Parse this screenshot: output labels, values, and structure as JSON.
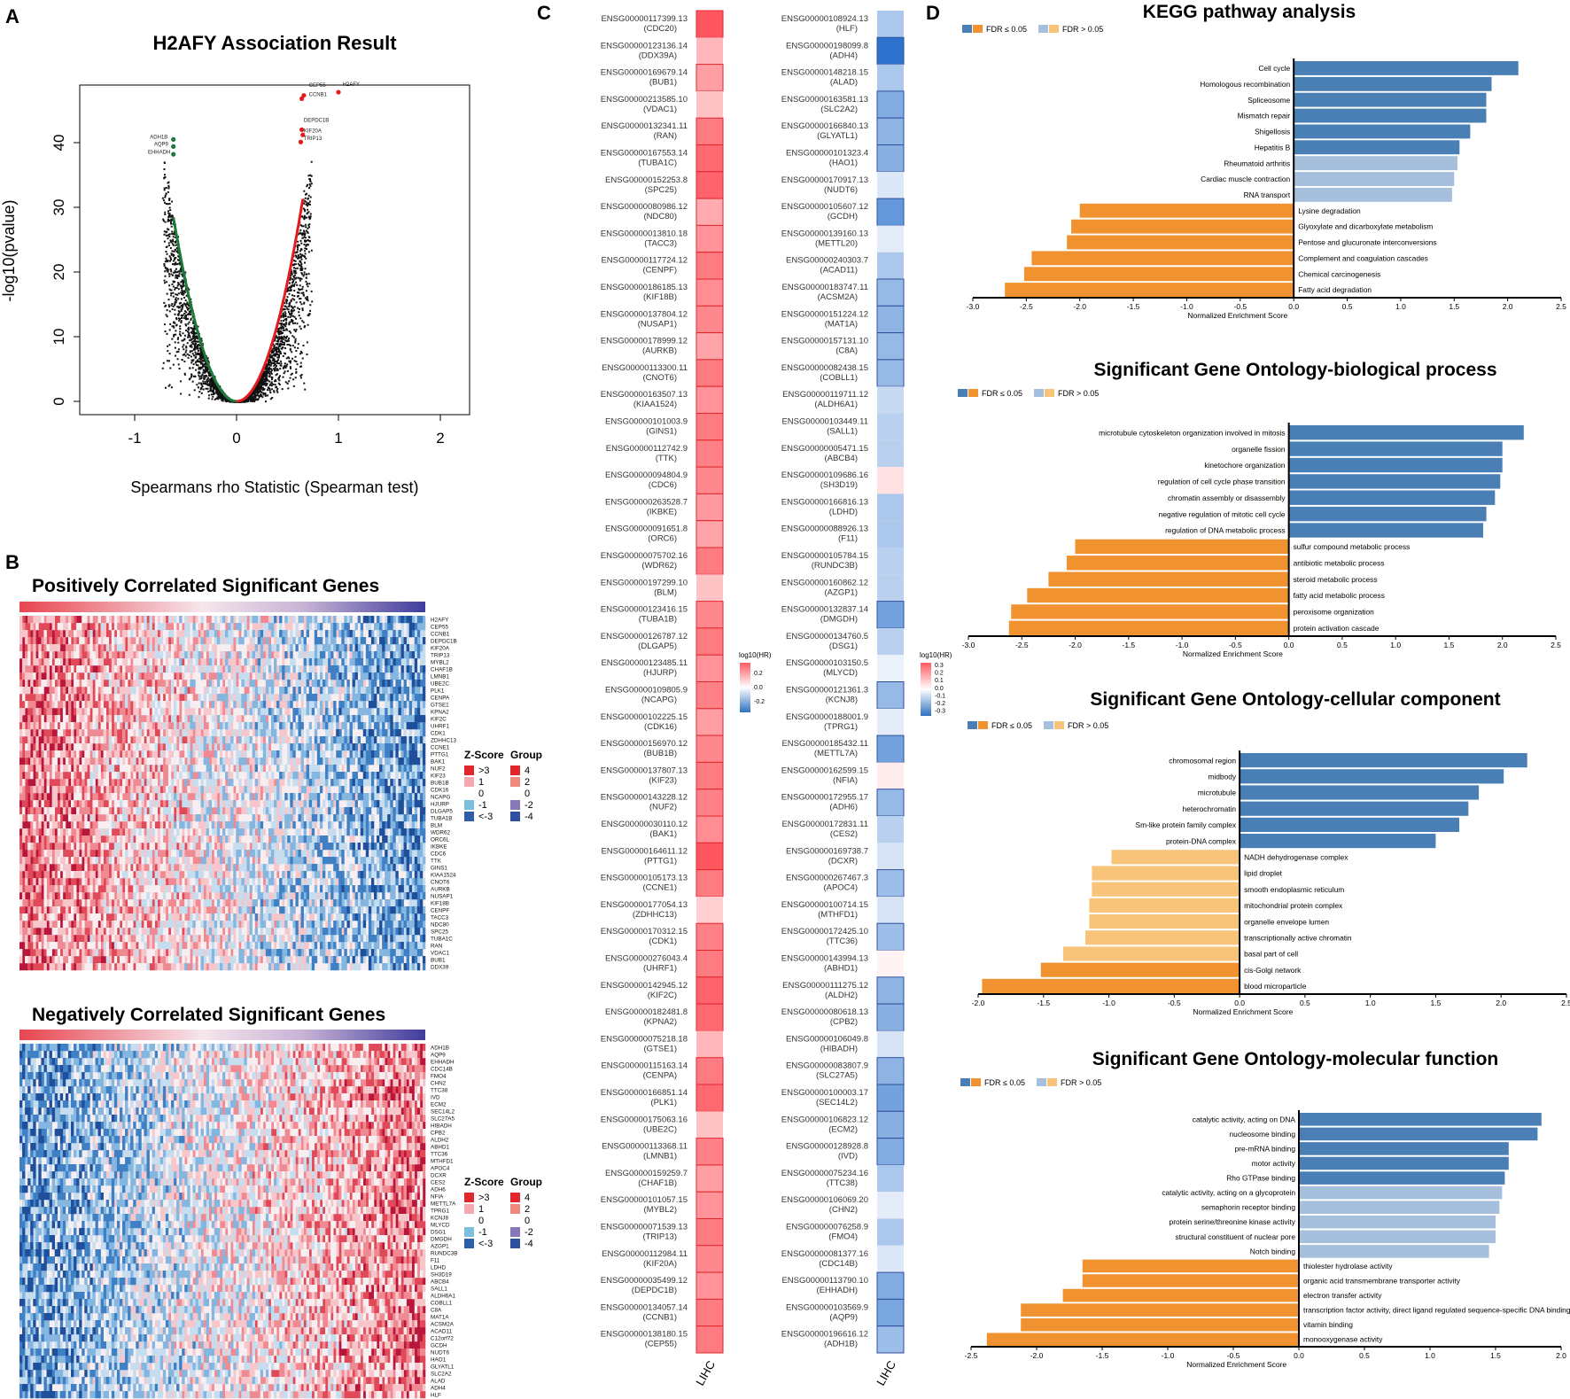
{
  "colors": {
    "blue_sig": "#4a7fb5",
    "blue_nonsig": "#a6bfdc",
    "orange_sig": "#f0922f",
    "orange_nonsig": "#f7c47a",
    "volcano_pos": "#e41a1c",
    "volcano_neg": "#1b7a3a",
    "heat_red": "#e8454f",
    "heat_blue": "#2f5ea8"
  },
  "panels": {
    "a": {
      "letter": "A"
    },
    "b": {
      "letter": "B"
    },
    "c": {
      "letter": "C"
    },
    "d": {
      "letter": "D"
    }
  },
  "volcano": {
    "title": "H2AFY Association Result",
    "xlabel": "Spearmans rho Statistic (Spearman test)",
    "ylabel": "-log10(pvalue)",
    "xticks": [
      "-1",
      "0",
      "1",
      "2"
    ],
    "yticks": [
      "0",
      "10",
      "20",
      "30",
      "40"
    ],
    "labels_pos": [
      "H2AFY",
      "CEP55",
      "CCNB1",
      "DEPDC1B",
      "KIF20A",
      "TRIP13"
    ],
    "labels_neg": [
      "ADH1B",
      "AQP9",
      "EHHADH"
    ]
  },
  "heatmaps": {
    "pos_title": "Positively Correlated Significant Genes",
    "neg_title": "Negatively Correlated Significant Genes",
    "pos_genes": [
      "H2AFY",
      "CEP55",
      "CCNB1",
      "DEPDC1B",
      "KIF20A",
      "TRIP13",
      "MYBL2",
      "CHAF1B",
      "LMNB1",
      "UBE2C",
      "PLK1",
      "CENPA",
      "GTSE1",
      "KPNA2",
      "KIF2C",
      "UHRF1",
      "CDK1",
      "ZDHHC13",
      "CCNE1",
      "PTTG1",
      "BAK1",
      "NUF2",
      "KIF23",
      "BUB1B",
      "CDK16",
      "NCAPG",
      "HJURP",
      "DLGAP5",
      "TUBA1B",
      "BLM",
      "WDR62",
      "ORC6L",
      "IKBKE",
      "CDC6",
      "TTK",
      "GINS1",
      "KIAA1524",
      "CNOT6",
      "AURKB",
      "NUSAP1",
      "KIF18B",
      "CENPF",
      "TACC3",
      "NDC80",
      "SPC25",
      "TUBA1C",
      "RAN",
      "VDAC1",
      "BUB1",
      "DDX39"
    ],
    "neg_genes": [
      "ADH1B",
      "AQP9",
      "EHHADH",
      "CDC14B",
      "FMO4",
      "CHN2",
      "TTC38",
      "IVD",
      "ECM2",
      "SEC14L2",
      "SLC27A5",
      "HIBADH",
      "CPB2",
      "ALDH2",
      "ABHD1",
      "TTC36",
      "MTHFD1",
      "APOC4",
      "DCXR",
      "CES2",
      "ADH6",
      "NFIA",
      "METTL7A",
      "TPRG1",
      "KCNJ8",
      "MLYCD",
      "DSG1",
      "DMGDH",
      "AZGP1",
      "RUNDC3B",
      "F11",
      "LDHD",
      "SH3D19",
      "ABCB4",
      "SALL1",
      "ALDH6A1",
      "COBLL1",
      "C8A",
      "MAT1A",
      "ACSM2A",
      "ACAD11",
      "C12orf72",
      "GCDH",
      "NUDT6",
      "HAO1",
      "GLYATL1",
      "SLC2A2",
      "ALAD",
      "ADH4",
      "HLF"
    ],
    "legend_z_title": "Z-Score",
    "legend_group_title": "Group",
    "legend_z": [
      ">3",
      "1",
      "0",
      "-1",
      "<-3"
    ],
    "legend_group": [
      "4",
      "2",
      "0",
      "-2",
      "-4"
    ]
  },
  "hr_panel": {
    "left_genes": [
      {
        "id": "ENSG00000117399.13",
        "sym": "(CDC20)",
        "v": 0.28
      },
      {
        "id": "ENSG00000123136.14",
        "sym": "(DDX39A)",
        "v": 0.12
      },
      {
        "id": "ENSG00000169679.14",
        "sym": "(BUB1)",
        "v": 0.16
      },
      {
        "id": "ENSG00000213585.10",
        "sym": "(VDAC1)",
        "v": 0.1
      },
      {
        "id": "ENSG00000132341.11",
        "sym": "(RAN)",
        "v": 0.22
      },
      {
        "id": "ENSG00000167553.14",
        "sym": "(TUBA1C)",
        "v": 0.25
      },
      {
        "id": "ENSG00000152253.8",
        "sym": "(SPC25)",
        "v": 0.26
      },
      {
        "id": "ENSG00000080986.12",
        "sym": "(NDC80)",
        "v": 0.14
      },
      {
        "id": "ENSG00000013810.18",
        "sym": "(TACC3)",
        "v": 0.18
      },
      {
        "id": "ENSG00000117724.12",
        "sym": "(CENPF)",
        "v": 0.22
      },
      {
        "id": "ENSG00000186185.13",
        "sym": "(KIF18B)",
        "v": 0.19
      },
      {
        "id": "ENSG00000137804.12",
        "sym": "(NUSAP1)",
        "v": 0.2
      },
      {
        "id": "ENSG00000178999.12",
        "sym": "(AURKB)",
        "v": 0.15
      },
      {
        "id": "ENSG00000113300.11",
        "sym": "(CNOT6)",
        "v": 0.22
      },
      {
        "id": "ENSG00000163507.13",
        "sym": "(KIAA1524)",
        "v": 0.18
      },
      {
        "id": "ENSG00000101003.9",
        "sym": "(GINS1)",
        "v": 0.22
      },
      {
        "id": "ENSG00000112742.9",
        "sym": "(TTK)",
        "v": 0.21
      },
      {
        "id": "ENSG00000094804.9",
        "sym": "(CDC6)",
        "v": 0.2
      },
      {
        "id": "ENSG00000263528.7",
        "sym": "(IKBKE)",
        "v": 0.17
      },
      {
        "id": "ENSG00000091651.8",
        "sym": "(ORC6)",
        "v": 0.15
      },
      {
        "id": "ENSG00000075702.16",
        "sym": "(WDR62)",
        "v": 0.22
      },
      {
        "id": "ENSG00000197299.10",
        "sym": "(BLM)",
        "v": 0.1
      },
      {
        "id": "ENSG00000123416.15",
        "sym": "(TUBA1B)",
        "v": 0.2
      },
      {
        "id": "ENSG00000126787.12",
        "sym": "(DLGAP5)",
        "v": 0.22
      },
      {
        "id": "ENSG00000123485.11",
        "sym": "(HJURP)",
        "v": 0.18
      },
      {
        "id": "ENSG00000109805.9",
        "sym": "(NCAPG)",
        "v": 0.21
      },
      {
        "id": "ENSG00000102225.15",
        "sym": "(CDK16)",
        "v": 0.16
      },
      {
        "id": "ENSG00000156970.12",
        "sym": "(BUB1B)",
        "v": 0.2
      },
      {
        "id": "ENSG00000137807.13",
        "sym": "(KIF23)",
        "v": 0.22
      },
      {
        "id": "ENSG00000143228.12",
        "sym": "(NUF2)",
        "v": 0.21
      },
      {
        "id": "ENSG00000030110.12",
        "sym": "(BAK1)",
        "v": 0.19
      },
      {
        "id": "ENSG00000164611.12",
        "sym": "(PTTG1)",
        "v": 0.28
      },
      {
        "id": "ENSG00000105173.13",
        "sym": "(CCNE1)",
        "v": 0.22
      },
      {
        "id": "ENSG00000177054.13",
        "sym": "(ZDHHC13)",
        "v": 0.08
      },
      {
        "id": "ENSG00000170312.15",
        "sym": "(CDK1)",
        "v": 0.21
      },
      {
        "id": "ENSG00000276043.4",
        "sym": "(UHRF1)",
        "v": 0.22
      },
      {
        "id": "ENSG00000142945.12",
        "sym": "(KIF2C)",
        "v": 0.26
      },
      {
        "id": "ENSG00000182481.8",
        "sym": "(KPNA2)",
        "v": 0.25
      },
      {
        "id": "ENSG00000075218.18",
        "sym": "(GTSE1)",
        "v": 0.12
      },
      {
        "id": "ENSG00000115163.14",
        "sym": "(CENPA)",
        "v": 0.22
      },
      {
        "id": "ENSG00000166851.14",
        "sym": "(PLK1)",
        "v": 0.25
      },
      {
        "id": "ENSG00000175063.16",
        "sym": "(UBE2C)",
        "v": 0.1
      },
      {
        "id": "ENSG00000113368.11",
        "sym": "(LMNB1)",
        "v": 0.21
      },
      {
        "id": "ENSG00000159259.7",
        "sym": "(CHAF1B)",
        "v": 0.16
      },
      {
        "id": "ENSG00000101057.15",
        "sym": "(MYBL2)",
        "v": 0.18
      },
      {
        "id": "ENSG00000071539.13",
        "sym": "(TRIP13)",
        "v": 0.22
      },
      {
        "id": "ENSG00000112984.11",
        "sym": "(KIF20A)",
        "v": 0.2
      },
      {
        "id": "ENSG00000035499.12",
        "sym": "(DEPDC1B)",
        "v": 0.18
      },
      {
        "id": "ENSG00000134057.14",
        "sym": "(CCNB1)",
        "v": 0.22
      },
      {
        "id": "ENSG00000138180.15",
        "sym": "(CEP55)",
        "v": 0.22
      }
    ],
    "right_genes": [
      {
        "id": "ENSG00000108924.13",
        "sym": "(HLF)",
        "v": -0.12
      },
      {
        "id": "ENSG00000198099.8",
        "sym": "(ADH4)",
        "v": -0.3
      },
      {
        "id": "ENSG00000148218.15",
        "sym": "(ALAD)",
        "v": -0.12
      },
      {
        "id": "ENSG00000163581.13",
        "sym": "(SLC2A2)",
        "v": -0.18
      },
      {
        "id": "ENSG00000166840.13",
        "sym": "(GLYATL1)",
        "v": -0.16
      },
      {
        "id": "ENSG00000101323.4",
        "sym": "(HAO1)",
        "v": -0.17
      },
      {
        "id": "ENSG00000170917.13",
        "sym": "(NUDT6)",
        "v": -0.05
      },
      {
        "id": "ENSG00000105607.12",
        "sym": "(GCDH)",
        "v": -0.22
      },
      {
        "id": "ENSG00000139160.13",
        "sym": "(METTL20)",
        "v": -0.04
      },
      {
        "id": "ENSG00000240303.7",
        "sym": "(ACAD11)",
        "v": -0.12
      },
      {
        "id": "ENSG00000183747.11",
        "sym": "(ACSM2A)",
        "v": -0.15
      },
      {
        "id": "ENSG00000151224.12",
        "sym": "(MAT1A)",
        "v": -0.16
      },
      {
        "id": "ENSG00000157131.10",
        "sym": "(C8A)",
        "v": -0.15
      },
      {
        "id": "ENSG00000082438.15",
        "sym": "(COBLL1)",
        "v": -0.15
      },
      {
        "id": "ENSG00000119711.12",
        "sym": "(ALDH6A1)",
        "v": -0.08
      },
      {
        "id": "ENSG00000103449.11",
        "sym": "(SALL1)",
        "v": -0.1
      },
      {
        "id": "ENSG00000005471.15",
        "sym": "(ABCB4)",
        "v": -0.1
      },
      {
        "id": "ENSG00000109686.16",
        "sym": "(SH3D19)",
        "v": 0.05
      },
      {
        "id": "ENSG00000166816.13",
        "sym": "(LDHD)",
        "v": -0.12
      },
      {
        "id": "ENSG00000088926.13",
        "sym": "(F11)",
        "v": -0.12
      },
      {
        "id": "ENSG00000105784.15",
        "sym": "(RUNDC3B)",
        "v": -0.1
      },
      {
        "id": "ENSG00000160862.12",
        "sym": "(AZGP1)",
        "v": -0.1
      },
      {
        "id": "ENSG00000132837.14",
        "sym": "(DMGDH)",
        "v": -0.2
      },
      {
        "id": "ENSG00000134760.5",
        "sym": "(DSG1)",
        "v": -0.1
      },
      {
        "id": "ENSG00000103150.5",
        "sym": "(MLYCD)",
        "v": -0.03
      },
      {
        "id": "ENSG00000121361.3",
        "sym": "(KCNJ8)",
        "v": -0.15
      },
      {
        "id": "ENSG00000188001.9",
        "sym": "(TPRG1)",
        "v": -0.04
      },
      {
        "id": "ENSG00000185432.11",
        "sym": "(METTL7A)",
        "v": -0.2
      },
      {
        "id": "ENSG00000162599.15",
        "sym": "(NFIA)",
        "v": 0.03
      },
      {
        "id": "ENSG00000172955.17",
        "sym": "(ADH6)",
        "v": -0.15
      },
      {
        "id": "ENSG00000172831.11",
        "sym": "(CES2)",
        "v": -0.1
      },
      {
        "id": "ENSG00000169738.7",
        "sym": "(DCXR)",
        "v": -0.06
      },
      {
        "id": "ENSG00000267467.3",
        "sym": "(APOC4)",
        "v": -0.14
      },
      {
        "id": "ENSG00000100714.15",
        "sym": "(MTHFD1)",
        "v": -0.06
      },
      {
        "id": "ENSG00000172425.10",
        "sym": "(TTC36)",
        "v": -0.14
      },
      {
        "id": "ENSG00000143994.13",
        "sym": "(ABHD1)",
        "v": 0.02
      },
      {
        "id": "ENSG00000111275.12",
        "sym": "(ALDH2)",
        "v": -0.16
      },
      {
        "id": "ENSG00000080618.13",
        "sym": "(CPB2)",
        "v": -0.17
      },
      {
        "id": "ENSG00000106049.8",
        "sym": "(HIBADH)",
        "v": -0.06
      },
      {
        "id": "ENSG00000083807.9",
        "sym": "(SLC27A5)",
        "v": -0.16
      },
      {
        "id": "ENSG00000100003.17",
        "sym": "(SEC14L2)",
        "v": -0.2
      },
      {
        "id": "ENSG00000106823.12",
        "sym": "(ECM2)",
        "v": -0.17
      },
      {
        "id": "ENSG00000128928.8",
        "sym": "(IVD)",
        "v": -0.18
      },
      {
        "id": "ENSG00000075234.16",
        "sym": "(TTC38)",
        "v": -0.12
      },
      {
        "id": "ENSG00000106069.20",
        "sym": "(CHN2)",
        "v": -0.04
      },
      {
        "id": "ENSG00000076258.9",
        "sym": "(FMO4)",
        "v": -0.12
      },
      {
        "id": "ENSG00000081377.16",
        "sym": "(CDC14B)",
        "v": -0.05
      },
      {
        "id": "ENSG00000113790.10",
        "sym": "(EHHADH)",
        "v": -0.18
      },
      {
        "id": "ENSG00000103569.9",
        "sym": "(AQP9)",
        "v": -0.19
      },
      {
        "id": "ENSG00000196616.12",
        "sym": "(ADH1B)",
        "v": -0.14
      }
    ],
    "legend_title": "log10(HR)",
    "legend_left_ticks": [
      "0.2",
      "0.0",
      "-0.2"
    ],
    "legend_right_ticks": [
      "0.3",
      "0.2",
      "0.1",
      "0.0",
      "-0.1",
      "-0.2",
      "-0.3"
    ],
    "xlabel": "LIHC"
  },
  "fdr_legend": {
    "sig": "FDR ≤ 0.05",
    "nonsig": "FDR > 0.05"
  },
  "chart_data": [
    {
      "type": "bar",
      "title": "KEGG pathway analysis",
      "xlabel": "Normalized Enrichment Score",
      "xlim": [
        -3.0,
        2.5
      ],
      "xticks": [
        "-3.0",
        "-2.5",
        "-2.0",
        "-1.5",
        "-1.0",
        "-0.5",
        "0.0",
        "0.5",
        "1.0",
        "1.5",
        "2.0",
        "2.5"
      ],
      "categories": [
        "Cell cycle",
        "Homologous recombination",
        "Spliceosome",
        "Mismatch repair",
        "Shigellosis",
        "Hepatitis B",
        "Rheumatoid arthritis",
        "Cardiac muscle contraction",
        "RNA transport",
        "Lysine degradation",
        "Glyoxylate and dicarboxylate metabolism",
        "Pentose and glucuronate interconversions",
        "Complement and coagulation cascades",
        "Chemical carcinogenesis",
        "Fatty acid degradation"
      ],
      "values": [
        2.1,
        1.85,
        1.8,
        1.8,
        1.65,
        1.55,
        1.53,
        1.5,
        1.48,
        -2.0,
        -2.08,
        -2.12,
        -2.45,
        -2.52,
        -2.7
      ],
      "significant": [
        true,
        true,
        true,
        true,
        true,
        true,
        false,
        false,
        false,
        true,
        true,
        true,
        true,
        true,
        true
      ]
    },
    {
      "type": "bar",
      "title": "Significant Gene Ontology-biological process",
      "xlabel": "Normalized Enrichment Score",
      "xlim": [
        -3.0,
        2.5
      ],
      "xticks": [
        "-3.0",
        "-2.5",
        "-2.0",
        "-1.5",
        "-1.0",
        "-0.5",
        "0.0",
        "0.5",
        "1.0",
        "1.5",
        "2.0",
        "2.5"
      ],
      "categories": [
        "microtubule cytoskeleton organization involved in mitosis",
        "organelle fission",
        "kinetochore organization",
        "regulation of cell cycle phase transition",
        "chromatin assembly or disassembly",
        "negative regulation of mitotic cell cycle",
        "regulation of DNA metabolic process",
        "sulfur compound metabolic process",
        "antibiotic metabolic process",
        "steroid metabolic process",
        "fatty acid metabolic process",
        "peroxisome organization",
        "protein activation cascade"
      ],
      "values": [
        2.2,
        2.0,
        2.0,
        1.98,
        1.93,
        1.85,
        1.82,
        -2.0,
        -2.08,
        -2.25,
        -2.45,
        -2.6,
        -2.62
      ],
      "significant": [
        true,
        true,
        true,
        true,
        true,
        true,
        true,
        true,
        true,
        true,
        true,
        true,
        true
      ]
    },
    {
      "type": "bar",
      "title": "Significant Gene Ontology-cellular component",
      "xlabel": "Normalized Enrichment Score",
      "xlim": [
        -2.0,
        2.5
      ],
      "xticks": [
        "-2.0",
        "-1.5",
        "-1.0",
        "-0.5",
        "0.0",
        "0.5",
        "1.0",
        "1.5",
        "2.0",
        "2.5"
      ],
      "categories": [
        "chromosomal region",
        "midbody",
        "microtubule",
        "heterochromatin",
        "Sm-like protein family complex",
        "protein-DNA complex",
        "NADH dehydrogenase complex",
        "lipid droplet",
        "smooth endoplasmic reticulum",
        "mitochondrial protein complex",
        "organelle envelope lumen",
        "transcriptionally active chromatin",
        "basal part of cell",
        "cis-Golgi network",
        "blood microparticle"
      ],
      "values": [
        2.2,
        2.02,
        1.83,
        1.75,
        1.68,
        1.5,
        -0.98,
        -1.13,
        -1.13,
        -1.15,
        -1.15,
        -1.18,
        -1.35,
        -1.52,
        -1.97
      ],
      "significant": [
        true,
        true,
        true,
        true,
        true,
        true,
        false,
        false,
        false,
        false,
        false,
        false,
        false,
        true,
        true
      ]
    },
    {
      "type": "bar",
      "title": "Significant Gene Ontology-molecular function",
      "xlabel": "Normalized Enrichment Score",
      "xlim": [
        -2.5,
        2.0
      ],
      "xticks": [
        "-2.5",
        "-2.0",
        "-1.5",
        "-1.0",
        "-0.5",
        "0.0",
        "0.5",
        "1.0",
        "1.5",
        "2.0"
      ],
      "categories": [
        "catalytic activity, acting on DNA",
        "nucleosome binding",
        "pre-mRNA binding",
        "motor activity",
        "Rho GTPase binding",
        "catalytic activity, acting on a glycoprotein",
        "semaphorin receptor binding",
        "protein serine/threonine kinase activity",
        "structural constituent of nuclear pore",
        "Notch binding",
        "thiolester hydrolase activity",
        "organic acid transmembrane transporter activity",
        "electron transfer activity",
        "transcription factor activity, direct ligand regulated sequence-specific DNA binding",
        "vitamin binding",
        "monooxygenase activity"
      ],
      "values": [
        1.85,
        1.82,
        1.6,
        1.6,
        1.57,
        1.55,
        1.53,
        1.5,
        1.5,
        1.45,
        -1.65,
        -1.65,
        -1.8,
        -2.12,
        -2.12,
        -2.38
      ],
      "significant": [
        true,
        true,
        true,
        true,
        true,
        false,
        false,
        false,
        false,
        false,
        true,
        true,
        true,
        true,
        true,
        true
      ]
    }
  ]
}
